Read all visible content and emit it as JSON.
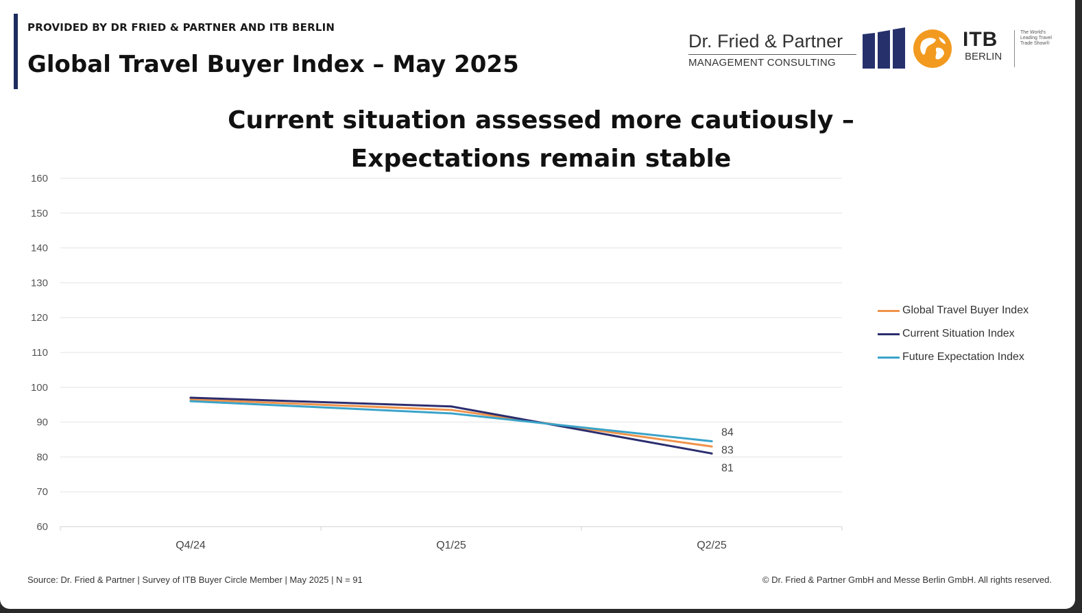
{
  "header": {
    "provided_by": "PROVIDED BY DR FRIED & PARTNER AND ITB BERLIN",
    "title": "Global Travel Buyer Index – May 2025"
  },
  "logos": {
    "dfp_name": "Dr. Fried & Partner",
    "dfp_sub": "MANAGEMENT CONSULTING",
    "itb_big": "ITB",
    "itb_small": "BERLIN",
    "itb_tagline": "The World's Leading Travel Trade Show®",
    "bars_icon": "bar-columns-icon",
    "globe_icon": "globe-icon"
  },
  "chart_data": {
    "type": "line",
    "title_line1": "Current situation assessed more cautiously –",
    "title_line2": "Expectations remain stable",
    "categories": [
      "Q4/24",
      "Q1/25",
      "Q2/25"
    ],
    "ylim": [
      60,
      160
    ],
    "yticks": [
      60,
      70,
      80,
      90,
      100,
      110,
      120,
      130,
      140,
      150,
      160
    ],
    "grid": true,
    "legend_position": "right",
    "series": [
      {
        "name": "Global Travel Buyer Index",
        "color": "#f0924a",
        "values": [
          96.5,
          93.5,
          83
        ],
        "end_label": "83"
      },
      {
        "name": "Current Situation Index",
        "color": "#2b2d6e",
        "values": [
          97,
          94.5,
          81
        ],
        "end_label": "81"
      },
      {
        "name": "Future Expectation Index",
        "color": "#3aa3c9",
        "values": [
          96,
          92.5,
          84.5
        ],
        "end_label": "84"
      }
    ]
  },
  "footer": {
    "source": "Source: Dr. Fried & Partner | Survey of ITB Buyer Circle Member | May 2025 | N = 91",
    "copyright": "© Dr. Fried & Partner GmbH and Messe Berlin GmbH. All rights reserved."
  }
}
